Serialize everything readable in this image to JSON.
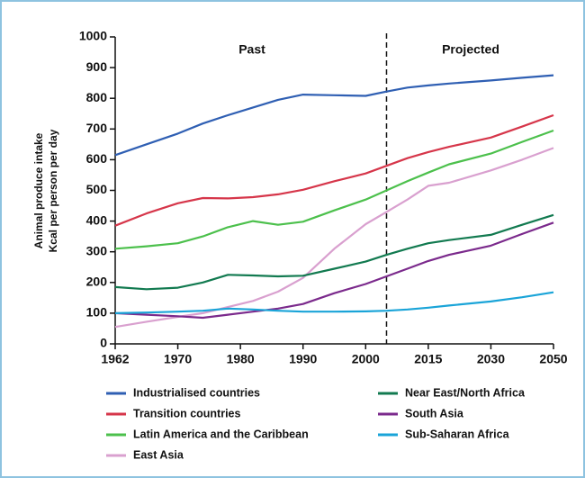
{
  "chart_data": {
    "type": "line",
    "y_label": [
      "Animal produce intake",
      "Kcal per person per day"
    ],
    "annotations": [
      "Past",
      "Projected"
    ],
    "divider_x": 2005,
    "x": [
      1962,
      1966,
      1970,
      1974,
      1978,
      1982,
      1986,
      1990,
      1995,
      2000,
      2005,
      2010,
      2015,
      2020,
      2030,
      2040,
      2050
    ],
    "xlim": [
      1962,
      2050
    ],
    "xticks": [
      1962,
      1970,
      1980,
      1990,
      2000,
      2015,
      2030,
      2050
    ],
    "ylim": [
      0,
      1000
    ],
    "yticks": [
      0,
      100,
      200,
      300,
      400,
      500,
      600,
      700,
      800,
      900,
      1000
    ],
    "series": [
      {
        "name": "Industrialised countries",
        "color": "#2f5fb3",
        "values": [
          615,
          650,
          685,
          718,
          745,
          770,
          795,
          812,
          810,
          808,
          822,
          835,
          842,
          848,
          858,
          867,
          875
        ]
      },
      {
        "name": "Transition countries",
        "color": "#d6364a",
        "values": [
          385,
          425,
          458,
          475,
          474,
          478,
          487,
          502,
          530,
          555,
          580,
          605,
          625,
          642,
          672,
          708,
          745
        ]
      },
      {
        "name": "Latin America and the Caribbean",
        "color": "#4cc04c",
        "values": [
          310,
          318,
          328,
          350,
          380,
          400,
          388,
          398,
          435,
          470,
          500,
          530,
          558,
          585,
          620,
          658,
          695
        ]
      },
      {
        "name": "East Asia",
        "color": "#d9a0cf",
        "values": [
          55,
          72,
          88,
          100,
          120,
          140,
          170,
          215,
          310,
          390,
          430,
          470,
          515,
          525,
          565,
          600,
          638
        ]
      },
      {
        "name": "Near East/North Africa",
        "color": "#127a50",
        "values": [
          185,
          178,
          183,
          200,
          225,
          223,
          220,
          222,
          245,
          268,
          290,
          310,
          328,
          338,
          355,
          388,
          420
        ]
      },
      {
        "name": "South Asia",
        "color": "#7b2a8c",
        "values": [
          100,
          95,
          90,
          85,
          95,
          105,
          115,
          130,
          165,
          195,
          220,
          245,
          270,
          290,
          320,
          358,
          395
        ]
      },
      {
        "name": "Sub-Saharan Africa",
        "color": "#1aa4d8",
        "values": [
          100,
          102,
          105,
          108,
          115,
          112,
          108,
          105,
          105,
          106,
          108,
          112,
          118,
          125,
          138,
          152,
          168
        ]
      }
    ]
  }
}
